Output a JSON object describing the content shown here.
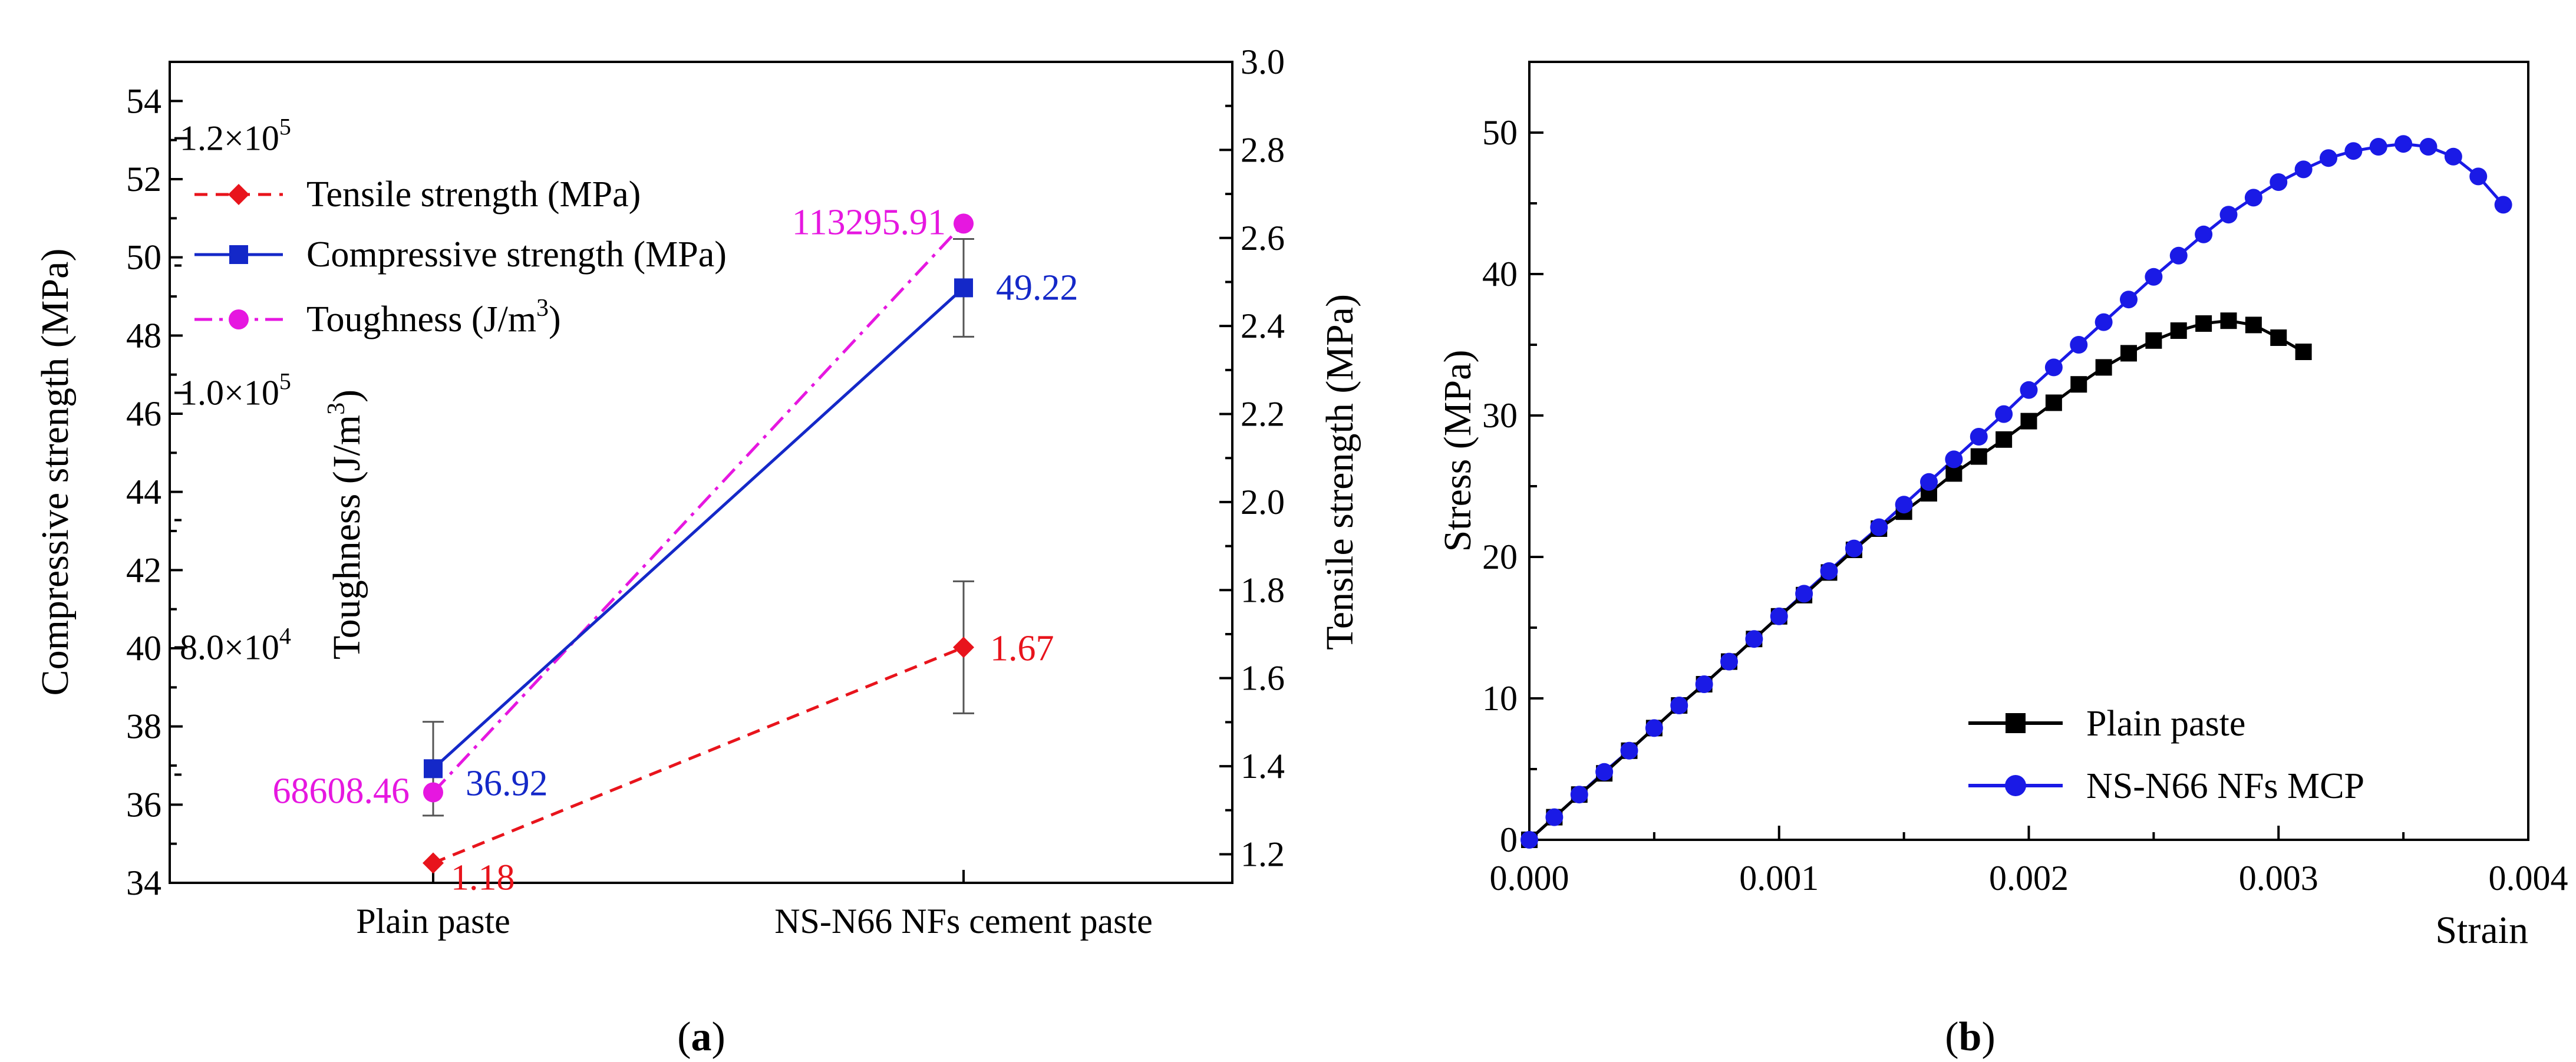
{
  "colors": {
    "tensile": "#e8141c",
    "compressive": "#1428c8",
    "toughness": "#e617e0",
    "plain_b": "#000000",
    "nfs_b": "#1a1ae6"
  },
  "chart_data": [
    {
      "panel": "(a)",
      "panel_letter": "a",
      "type": "line",
      "categories": [
        "Plain paste",
        "NS-N66 NFs cement paste"
      ],
      "left_axis": {
        "label": "Compressive strength (MPa)",
        "range": [
          34,
          55
        ],
        "ticks": [
          "34",
          "36",
          "38",
          "40",
          "42",
          "44",
          "46",
          "48",
          "50",
          "52",
          "54"
        ]
      },
      "right_axis": {
        "label": "Tensile strength (MPa)",
        "range": [
          1.135,
          3.0
        ],
        "ticks": [
          "1.2",
          "1.4",
          "1.6",
          "1.8",
          "2.0",
          "2.2",
          "2.4",
          "2.6",
          "2.8",
          "3.0"
        ]
      },
      "inner_axis": {
        "label_main": "Toughness (J/m",
        "label_sup": "3",
        "label_end": ")",
        "range": [
          61500,
          126000
        ],
        "ticks": [
          {
            "mantissa": "8.0×10",
            "exp": "4",
            "value": 80000
          },
          {
            "mantissa": "1.0×10",
            "exp": "5",
            "value": 100000
          },
          {
            "mantissa": "1.2×10",
            "exp": "5",
            "value": 120000
          }
        ]
      },
      "series": [
        {
          "name": "Tensile strength (MPa)",
          "axis": "right",
          "values": [
            1.18,
            1.67
          ],
          "error": [
            0.0,
            0.15
          ],
          "labels": [
            "1.18",
            "1.67"
          ]
        },
        {
          "name": "Compressive strength (MPa)",
          "axis": "left",
          "values": [
            36.92,
            49.22
          ],
          "error": [
            1.2,
            1.25
          ],
          "labels": [
            "36.92",
            "49.22"
          ]
        },
        {
          "name": "Toughness (J/m³)",
          "legend_main": "Toughness (J/m",
          "legend_sup": "3",
          "legend_end": ")",
          "axis": "inner",
          "values": [
            68608.46,
            113295.91
          ],
          "labels": [
            "68608.46",
            "113295.91"
          ]
        }
      ]
    },
    {
      "panel": "(b)",
      "panel_letter": "b",
      "type": "line",
      "xlabel": "Strain",
      "ylabel": "Stress (MPa)",
      "xlim": [
        0,
        0.004
      ],
      "ylim": [
        0,
        55
      ],
      "xticks": [
        "0.000",
        "0.001",
        "0.002",
        "0.003",
        "0.004"
      ],
      "yticks": [
        "0",
        "10",
        "20",
        "30",
        "40",
        "50"
      ],
      "series": [
        {
          "name": "Plain paste",
          "x": [
            0,
            0.0001,
            0.0002,
            0.0003,
            0.0004,
            0.0005,
            0.0006,
            0.0007,
            0.0008,
            0.0009,
            0.001,
            0.0011,
            0.0012,
            0.0013,
            0.0014,
            0.0015,
            0.0016,
            0.0017,
            0.0018,
            0.0019,
            0.002,
            0.0021,
            0.0022,
            0.0023,
            0.0024,
            0.0025,
            0.0026,
            0.0027,
            0.0028,
            0.0029,
            0.003,
            0.0031
          ],
          "y": [
            0,
            1.6,
            3.2,
            4.7,
            6.3,
            7.9,
            9.5,
            11.0,
            12.6,
            14.2,
            15.8,
            17.3,
            18.9,
            20.5,
            22.0,
            23.2,
            24.5,
            25.9,
            27.1,
            28.3,
            29.6,
            30.9,
            32.2,
            33.4,
            34.4,
            35.3,
            36.0,
            36.5,
            36.7,
            36.4,
            35.5,
            34.5
          ]
        },
        {
          "name": "NS-N66 NFs MCP",
          "x": [
            0,
            0.0001,
            0.0002,
            0.0003,
            0.0004,
            0.0005,
            0.0006,
            0.0007,
            0.0008,
            0.0009,
            0.001,
            0.0011,
            0.0012,
            0.0013,
            0.0014,
            0.0015,
            0.0016,
            0.0017,
            0.0018,
            0.0019,
            0.002,
            0.0021,
            0.0022,
            0.0023,
            0.0024,
            0.0025,
            0.0026,
            0.0027,
            0.0028,
            0.0029,
            0.003,
            0.0031,
            0.0032,
            0.0033,
            0.0034,
            0.0035,
            0.0036,
            0.0037,
            0.0038,
            0.0039
          ],
          "y": [
            0,
            1.6,
            3.2,
            4.8,
            6.3,
            7.9,
            9.5,
            11.0,
            12.6,
            14.2,
            15.8,
            17.4,
            19.0,
            20.6,
            22.1,
            23.7,
            25.3,
            26.9,
            28.5,
            30.1,
            31.8,
            33.4,
            35.0,
            36.6,
            38.2,
            39.8,
            41.3,
            42.8,
            44.2,
            45.4,
            46.5,
            47.4,
            48.2,
            48.7,
            49.0,
            49.2,
            49.0,
            48.3,
            46.9,
            44.9
          ]
        }
      ]
    }
  ]
}
